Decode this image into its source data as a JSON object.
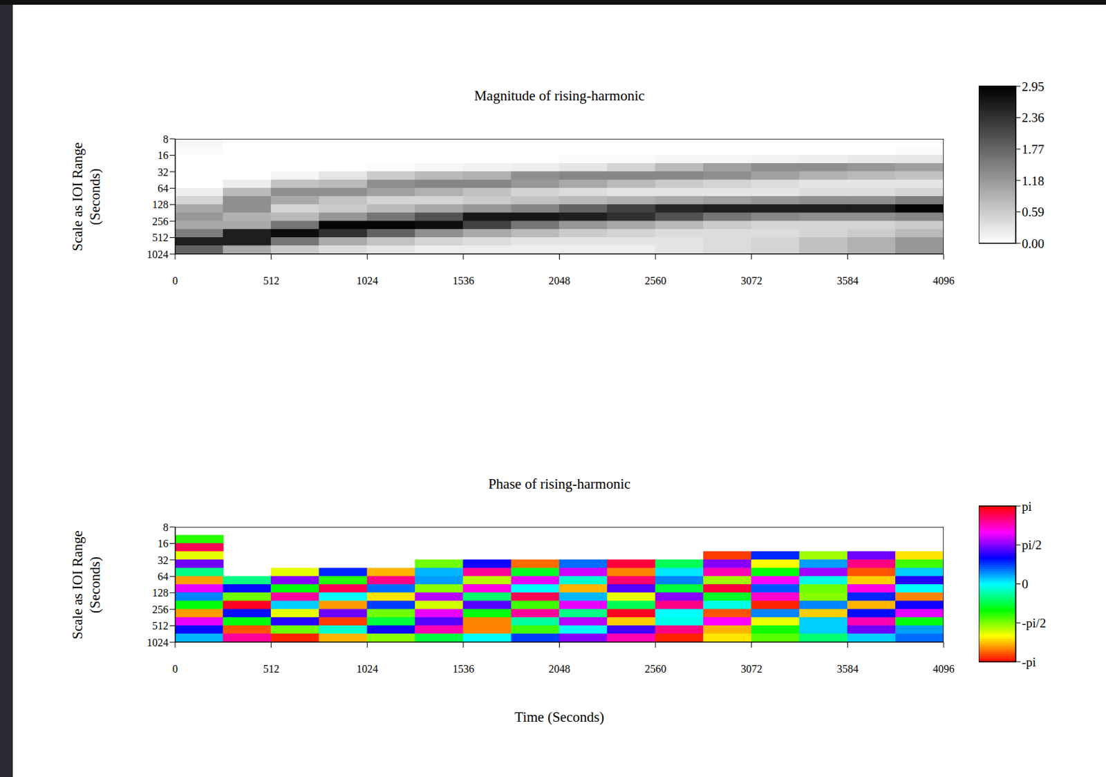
{
  "chart_data": [
    {
      "type": "heatmap",
      "title": "Magnitude of rising-harmonic",
      "ylabel": "Scale as IOI Range (Seconds)",
      "xlim": [
        0,
        4096
      ],
      "xticks": [
        0,
        512,
        1024,
        1536,
        2048,
        2560,
        3072,
        3584,
        4096
      ],
      "ylim": [
        8,
        1024
      ],
      "yticks": [
        8,
        16,
        32,
        64,
        128,
        256,
        512,
        1024
      ],
      "log": "y",
      "color": "gray",
      "heatmap": {
        "x_edges": [
          0,
          256,
          512,
          768,
          1024,
          1280,
          1536,
          1792,
          2048,
          2304,
          2560,
          2816,
          3072,
          3328,
          3584,
          3840,
          4096
        ],
        "y_edges": [
          8,
          11.3,
          16,
          22.6,
          32,
          45.3,
          64,
          90.5,
          128,
          181,
          256,
          362,
          512,
          724,
          1024
        ],
        "values": [
          [
            0.1,
            0,
            0,
            0,
            0,
            0,
            0,
            0,
            0,
            0,
            0,
            0,
            0,
            0,
            0,
            0
          ],
          [
            0.05,
            0,
            0,
            0,
            0,
            0,
            0,
            0,
            0,
            0,
            0,
            0,
            0,
            0,
            0,
            0.05
          ],
          [
            0,
            0,
            0,
            0,
            0,
            0,
            0,
            0,
            0.05,
            0.05,
            0.1,
            0.1,
            0.15,
            0.2,
            0.25,
            0.3
          ],
          [
            0,
            0,
            0,
            0,
            0.05,
            0.1,
            0.15,
            0.2,
            0.3,
            0.5,
            0.8,
            1.1,
            1.3,
            1.3,
            1.2,
            1.1
          ],
          [
            0,
            0,
            0.1,
            0.3,
            0.6,
            0.8,
            0.9,
            1.3,
            1.4,
            1.4,
            1.4,
            1.3,
            1.1,
            0.9,
            0.8,
            0.7
          ],
          [
            0,
            0.2,
            0.7,
            0.8,
            1.3,
            1.4,
            1.4,
            1.2,
            1.0,
            0.8,
            0.6,
            0.5,
            0.4,
            0.3,
            0.3,
            0.3
          ],
          [
            0.2,
            0.8,
            1.3,
            1.3,
            1.1,
            0.9,
            0.7,
            0.5,
            0.4,
            0.3,
            0.3,
            0.3,
            0.3,
            0.4,
            0.4,
            0.5
          ],
          [
            0.5,
            1.3,
            1.0,
            0.7,
            0.5,
            0.5,
            0.6,
            0.7,
            0.8,
            0.9,
            1.0,
            1.1,
            1.2,
            1.3,
            1.3,
            1.5
          ],
          [
            1.0,
            1.3,
            0.5,
            0.6,
            0.8,
            1.0,
            1.2,
            1.4,
            1.8,
            2.2,
            2.5,
            2.6,
            2.6,
            2.6,
            2.6,
            2.9
          ],
          [
            1.2,
            0.9,
            0.8,
            1.2,
            1.6,
            2.0,
            2.7,
            2.7,
            2.6,
            2.4,
            2.0,
            1.6,
            1.4,
            1.3,
            1.3,
            1.4
          ],
          [
            1.0,
            1.0,
            1.6,
            2.9,
            2.9,
            2.8,
            2.2,
            1.6,
            1.2,
            1.0,
            0.8,
            0.6,
            0.5,
            0.5,
            0.5,
            0.6
          ],
          [
            1.5,
            2.6,
            2.8,
            2.4,
            1.8,
            1.3,
            1.0,
            0.8,
            0.6,
            0.5,
            0.4,
            0.4,
            0.4,
            0.5,
            0.6,
            0.8
          ],
          [
            2.6,
            2.6,
            1.6,
            1.0,
            0.7,
            0.5,
            0.4,
            0.3,
            0.3,
            0.3,
            0.3,
            0.4,
            0.5,
            0.7,
            0.9,
            1.2
          ],
          [
            1.8,
            1.0,
            0.6,
            0.4,
            0.3,
            0.2,
            0.2,
            0.2,
            0.2,
            0.2,
            0.3,
            0.4,
            0.5,
            0.7,
            0.9,
            1.2
          ]
        ],
        "colorbar_lim": [
          0,
          2.95
        ],
        "colorbar_ticks": [
          {
            "value": 0,
            "label": "0.00"
          },
          0.59,
          1.18,
          1.77,
          2.36,
          2.95
        ]
      }
    },
    {
      "type": "heatmap",
      "title": "Phase of rising-harmonic",
      "ylabel": "Scale as IOI Range (Seconds)",
      "xlabel": "Time (Seconds)",
      "xlim": [
        0,
        4096
      ],
      "xticks": [
        0,
        512,
        1024,
        1536,
        2048,
        2560,
        3072,
        3584,
        4096
      ],
      "ylim": [
        8,
        1024
      ],
      "yticks": [
        8,
        16,
        32,
        64,
        128,
        256,
        512,
        1024
      ],
      "log": "y",
      "color": "hsv",
      "heatmap": {
        "x_edges": [
          0,
          256,
          512,
          768,
          1024,
          1280,
          1536,
          1792,
          2048,
          2304,
          2560,
          2816,
          3072,
          3328,
          3584,
          3840,
          4096
        ],
        "y_edges": [
          8,
          11.3,
          16,
          22.6,
          32,
          45.3,
          64,
          90.5,
          128,
          181,
          256,
          362,
          512,
          724,
          1024
        ],
        "values": [
          [
            null,
            null,
            null,
            null,
            null,
            null,
            null,
            null,
            null,
            null,
            null,
            null,
            null,
            null,
            null,
            null
          ],
          [
            -1.2,
            null,
            null,
            null,
            null,
            null,
            null,
            null,
            null,
            null,
            null,
            null,
            null,
            null,
            null,
            null
          ],
          [
            2.8,
            null,
            null,
            null,
            null,
            null,
            null,
            null,
            null,
            null,
            null,
            null,
            null,
            null,
            null,
            null
          ],
          [
            -2.0,
            null,
            null,
            null,
            null,
            null,
            null,
            null,
            null,
            null,
            null,
            -2.9,
            0.9,
            -1.7,
            1.5,
            -2.2
          ],
          [
            1.5,
            null,
            null,
            null,
            null,
            -1.5,
            1.1,
            -2.7,
            0.6,
            2.9,
            -0.7,
            1.6,
            -2.1,
            0.4,
            2.6,
            -1.3
          ],
          [
            -0.5,
            null,
            -2.0,
            0.9,
            -2.4,
            0.3,
            2.5,
            -0.9,
            1.9,
            -2.6,
            0.1,
            2.4,
            -1.0,
            1.7,
            -2.8,
            0.2
          ],
          [
            -2.5,
            -0.5,
            1.6,
            -1.2,
            2.6,
            0.4,
            -1.8,
            2.0,
            -0.2,
            2.7,
            0.5,
            -1.7,
            2.1,
            -0.1,
            -2.3,
            1.2
          ],
          [
            2.0,
            1.0,
            -1.0,
            2.8,
            0.6,
            -1.6,
            2.2,
            0.0,
            -2.4,
            1.4,
            -0.8,
            2.9,
            0.7,
            -1.5,
            2.2,
            0.0
          ],
          [
            0.5,
            -1.5,
            2.5,
            0.0,
            -2.2,
            1.8,
            -0.6,
            2.8,
            0.3,
            -2.0,
            1.6,
            -0.9,
            2.3,
            -1.6,
            0.9,
            -2.6
          ],
          [
            -1.0,
            3.0,
            0.2,
            -2.5,
            0.8,
            -1.9,
            1.4,
            -1.3,
            2.0,
            -0.7,
            2.6,
            -0.1,
            -3.0,
            0.5,
            -2.4,
            1.1
          ],
          [
            -2.5,
            1.0,
            -2.0,
            1.5,
            -1.5,
            2.0,
            -1.0,
            2.5,
            -0.5,
            3.0,
            0.0,
            -2.8,
            0.5,
            -2.3,
            1.0,
            2.0
          ],
          [
            2.0,
            -1.0,
            1.2,
            -2.9,
            -0.8,
            1.4,
            -2.6,
            -0.4,
            1.8,
            -2.3,
            -0.1,
            2.1,
            -2.0,
            0.2,
            2.4,
            -1.0
          ],
          [
            1.0,
            -2.8,
            -1.5,
            -0.2,
            1.1,
            2.4,
            -2.6,
            -1.3,
            0.0,
            1.3,
            2.6,
            -2.4,
            -1.1,
            0.2,
            1.5,
            0.4
          ],
          [
            0.3,
            2.5,
            -3.0,
            -2.4,
            -1.6,
            -0.8,
            0.0,
            0.8,
            1.6,
            2.4,
            -3.0,
            -2.2,
            -1.4,
            -0.6,
            0.2,
            0.6
          ]
        ],
        "colorbar_lim": [
          -3.14159,
          3.14159
        ],
        "colorbar_ticks": [
          {
            "value": -3.14159,
            "label": "-pi"
          },
          {
            "value": -1.5708,
            "label": "-pi/2"
          },
          0,
          {
            "value": 1.5708,
            "label": "pi/2"
          },
          {
            "value": 3.14159,
            "label": "pi"
          }
        ]
      }
    }
  ]
}
